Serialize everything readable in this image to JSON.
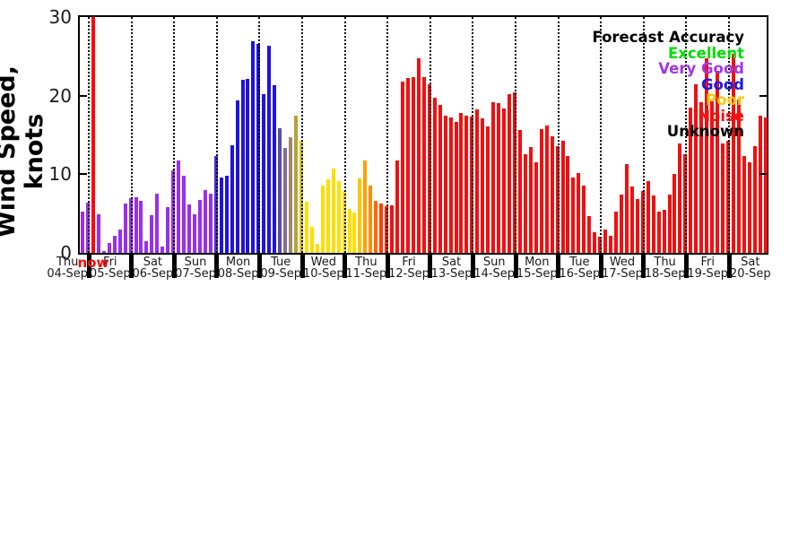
{
  "chart_data": {
    "type": "bar",
    "title": "",
    "ylabel": "Wind Speed, knots",
    "yticks": [
      0,
      10,
      20,
      30
    ],
    "ylim": [
      0,
      30
    ],
    "grid": "vertical dotted lines at each midnight",
    "bars_per_day": 8,
    "now_marker": {
      "slot": 2,
      "label": "now",
      "color": "#FF0505"
    },
    "palette": {
      "vg": "#9C2EE8",
      "vgb": "#4B2BD6",
      "g": "#2013DC",
      "t1": "#564CA8",
      "t2": "#80708F",
      "t3": "#9C8A70",
      "t4": "#B5A23B",
      "t5": "#D9C324",
      "p": "#FFDE00",
      "o1": "#FFC300",
      "o2": "#FFA000",
      "o3": "#FF8C00",
      "o4": "#FF6A00",
      "o5": "#FF3C00",
      "o6": "#FF2200",
      "n": "#EE1111"
    },
    "bars": [
      [
        5.2,
        "vg"
      ],
      [
        6.4,
        "vg"
      ],
      [
        0,
        "vg"
      ],
      [
        4.9,
        "vg"
      ],
      [
        0.2,
        "vg"
      ],
      [
        1.2,
        "vg"
      ],
      [
        2.2,
        "vg"
      ],
      [
        3.0,
        "vg"
      ],
      [
        6.3,
        "vg"
      ],
      [
        7.0,
        "vg"
      ],
      [
        7.1,
        "vg"
      ],
      [
        6.6,
        "vg"
      ],
      [
        1.5,
        "vg"
      ],
      [
        4.8,
        "vg"
      ],
      [
        7.5,
        "vg"
      ],
      [
        0.8,
        "vg"
      ],
      [
        5.8,
        "vg"
      ],
      [
        10.5,
        "vg"
      ],
      [
        11.7,
        "vg"
      ],
      [
        9.8,
        "vg"
      ],
      [
        6.2,
        "vg"
      ],
      [
        4.9,
        "vg"
      ],
      [
        6.7,
        "vg"
      ],
      [
        8.0,
        "vg"
      ],
      [
        7.5,
        "vg"
      ],
      [
        12.3,
        "vgb"
      ],
      [
        9.6,
        "g"
      ],
      [
        9.8,
        "g"
      ],
      [
        13.7,
        "g"
      ],
      [
        19.4,
        "g"
      ],
      [
        22.0,
        "g"
      ],
      [
        22.1,
        "g"
      ],
      [
        26.9,
        "g"
      ],
      [
        26.6,
        "g"
      ],
      [
        20.2,
        "g"
      ],
      [
        26.4,
        "g"
      ],
      [
        21.3,
        "g"
      ],
      [
        15.9,
        "t1"
      ],
      [
        13.4,
        "t2"
      ],
      [
        14.7,
        "t3"
      ],
      [
        17.4,
        "t4"
      ],
      [
        14.3,
        "t5"
      ],
      [
        6.5,
        "p"
      ],
      [
        3.3,
        "p"
      ],
      [
        1.1,
        "p"
      ],
      [
        8.5,
        "p"
      ],
      [
        9.4,
        "p"
      ],
      [
        10.7,
        "p"
      ],
      [
        9.1,
        "p"
      ],
      [
        7.9,
        "p"
      ],
      [
        5.6,
        "p"
      ],
      [
        5.1,
        "p"
      ],
      [
        9.5,
        "o1"
      ],
      [
        11.7,
        "o2"
      ],
      [
        8.5,
        "o3"
      ],
      [
        6.6,
        "o4"
      ],
      [
        6.3,
        "o5"
      ],
      [
        5.9,
        "o6"
      ],
      [
        6.1,
        "n"
      ],
      [
        11.7,
        "n"
      ],
      [
        21.8,
        "n"
      ],
      [
        22.3,
        "n"
      ],
      [
        22.4,
        "n"
      ],
      [
        24.8,
        "n"
      ],
      [
        22.4,
        "n"
      ],
      [
        21.4,
        "n"
      ],
      [
        19.7,
        "n"
      ],
      [
        18.8,
        "n"
      ],
      [
        17.4,
        "n"
      ],
      [
        17.2,
        "n"
      ],
      [
        16.7,
        "n"
      ],
      [
        17.8,
        "n"
      ],
      [
        17.4,
        "n"
      ],
      [
        17.3,
        "n"
      ],
      [
        18.2,
        "n"
      ],
      [
        17.1,
        "n"
      ],
      [
        16.1,
        "n"
      ],
      [
        19.2,
        "n"
      ],
      [
        19.1,
        "n"
      ],
      [
        18.4,
        "n"
      ],
      [
        20.2,
        "n"
      ],
      [
        20.4,
        "n"
      ],
      [
        15.6,
        "n"
      ],
      [
        12.6,
        "n"
      ],
      [
        13.5,
        "n"
      ],
      [
        11.5,
        "n"
      ],
      [
        15.7,
        "n"
      ],
      [
        16.2,
        "n"
      ],
      [
        14.8,
        "n"
      ],
      [
        13.6,
        "n"
      ],
      [
        14.3,
        "n"
      ],
      [
        12.3,
        "n"
      ],
      [
        9.6,
        "n"
      ],
      [
        10.1,
        "n"
      ],
      [
        8.5,
        "n"
      ],
      [
        4.7,
        "n"
      ],
      [
        2.6,
        "n"
      ],
      [
        2.1,
        "n"
      ],
      [
        3.0,
        "n"
      ],
      [
        2.2,
        "n"
      ],
      [
        5.3,
        "n"
      ],
      [
        7.4,
        "n"
      ],
      [
        11.3,
        "n"
      ],
      [
        8.4,
        "n"
      ],
      [
        6.9,
        "n"
      ],
      [
        7.9,
        "n"
      ],
      [
        9.1,
        "n"
      ],
      [
        7.3,
        "n"
      ],
      [
        5.3,
        "n"
      ],
      [
        5.5,
        "n"
      ],
      [
        7.4,
        "n"
      ],
      [
        10.0,
        "n"
      ],
      [
        13.9,
        "n"
      ],
      [
        12.6,
        "n"
      ],
      [
        18.5,
        "n"
      ],
      [
        21.4,
        "n"
      ],
      [
        19.2,
        "n"
      ],
      [
        24.7,
        "n"
      ],
      [
        19.3,
        "n"
      ],
      [
        23.2,
        "n"
      ],
      [
        13.9,
        "n"
      ],
      [
        14.3,
        "n"
      ],
      [
        25.3,
        "n"
      ],
      [
        19.5,
        "n"
      ],
      [
        12.3,
        "n"
      ],
      [
        11.5,
        "n"
      ],
      [
        13.6,
        "n"
      ],
      [
        17.4,
        "n"
      ],
      [
        17.2,
        "n"
      ]
    ],
    "x_day_labels": [
      "Thu",
      "Fri",
      "Sat",
      "Sun",
      "Mon",
      "Tue",
      "Wed",
      "Thu",
      "Fri",
      "Sat",
      "Sun",
      "Mon",
      "Tue",
      "Wed",
      "Thu",
      "Fri",
      "Sat"
    ],
    "x_date_labels": [
      "04-Sep",
      "05-Sep",
      "06-Sep",
      "07-Sep",
      "08-Sep",
      "09-Sep",
      "10-Sep",
      "11-Sep",
      "12-Sep",
      "13-Sep",
      "14-Sep",
      "15-Sep",
      "16-Sep",
      "17-Sep",
      "18-Sep",
      "19-Sep",
      "20-Sep"
    ],
    "legend": {
      "title": "Forecast Accuracy",
      "position": "top-right",
      "entries": [
        {
          "label": "Excellent",
          "color": "#00DC00"
        },
        {
          "label": "Very Good",
          "color": "#A435E8"
        },
        {
          "label": "Good",
          "color": "#1A1AE8"
        },
        {
          "label": "Poor",
          "color": "#FFC40C"
        },
        {
          "label": "Noise",
          "color": "#F01212"
        },
        {
          "label": "Unknown",
          "color": "#000000"
        }
      ]
    }
  }
}
